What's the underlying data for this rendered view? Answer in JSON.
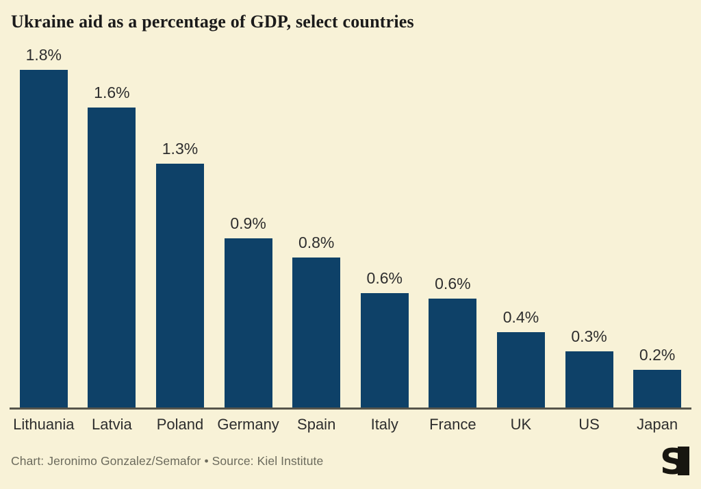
{
  "title": "Ukraine aid as a percentage of GDP, select countries",
  "chart_data": {
    "type": "bar",
    "title": "Ukraine aid as a percentage of GDP, select countries",
    "categories": [
      "Lithuania",
      "Latvia",
      "Poland",
      "Germany",
      "Spain",
      "Italy",
      "France",
      "UK",
      "US",
      "Japan"
    ],
    "values": [
      1.8,
      1.6,
      1.3,
      0.9,
      0.8,
      0.61,
      0.58,
      0.4,
      0.3,
      0.2
    ],
    "value_labels": [
      "1.8%",
      "1.6%",
      "1.3%",
      "0.9%",
      "0.8%",
      "0.6%",
      "0.6%",
      "0.4%",
      "0.3%",
      "0.2%"
    ],
    "xlabel": "",
    "ylabel": "",
    "ylim": [
      0,
      1.95
    ],
    "grid": false,
    "legend": false,
    "bar_color": "#0E4168",
    "baseline_axis": true
  },
  "colors": {
    "background": "#F8F2D7",
    "bar": "#0E4168",
    "axis_line": "#56554B",
    "title_text": "#1b1b1b",
    "label_text": "#2d2d2d",
    "footer_text": "#6b6a5c",
    "logo": "#181610"
  },
  "footer": {
    "credit": "Chart: Jeronimo Gonzalez/Semafor • Source: Kiel Institute",
    "logo_name": "semafor-logo"
  }
}
